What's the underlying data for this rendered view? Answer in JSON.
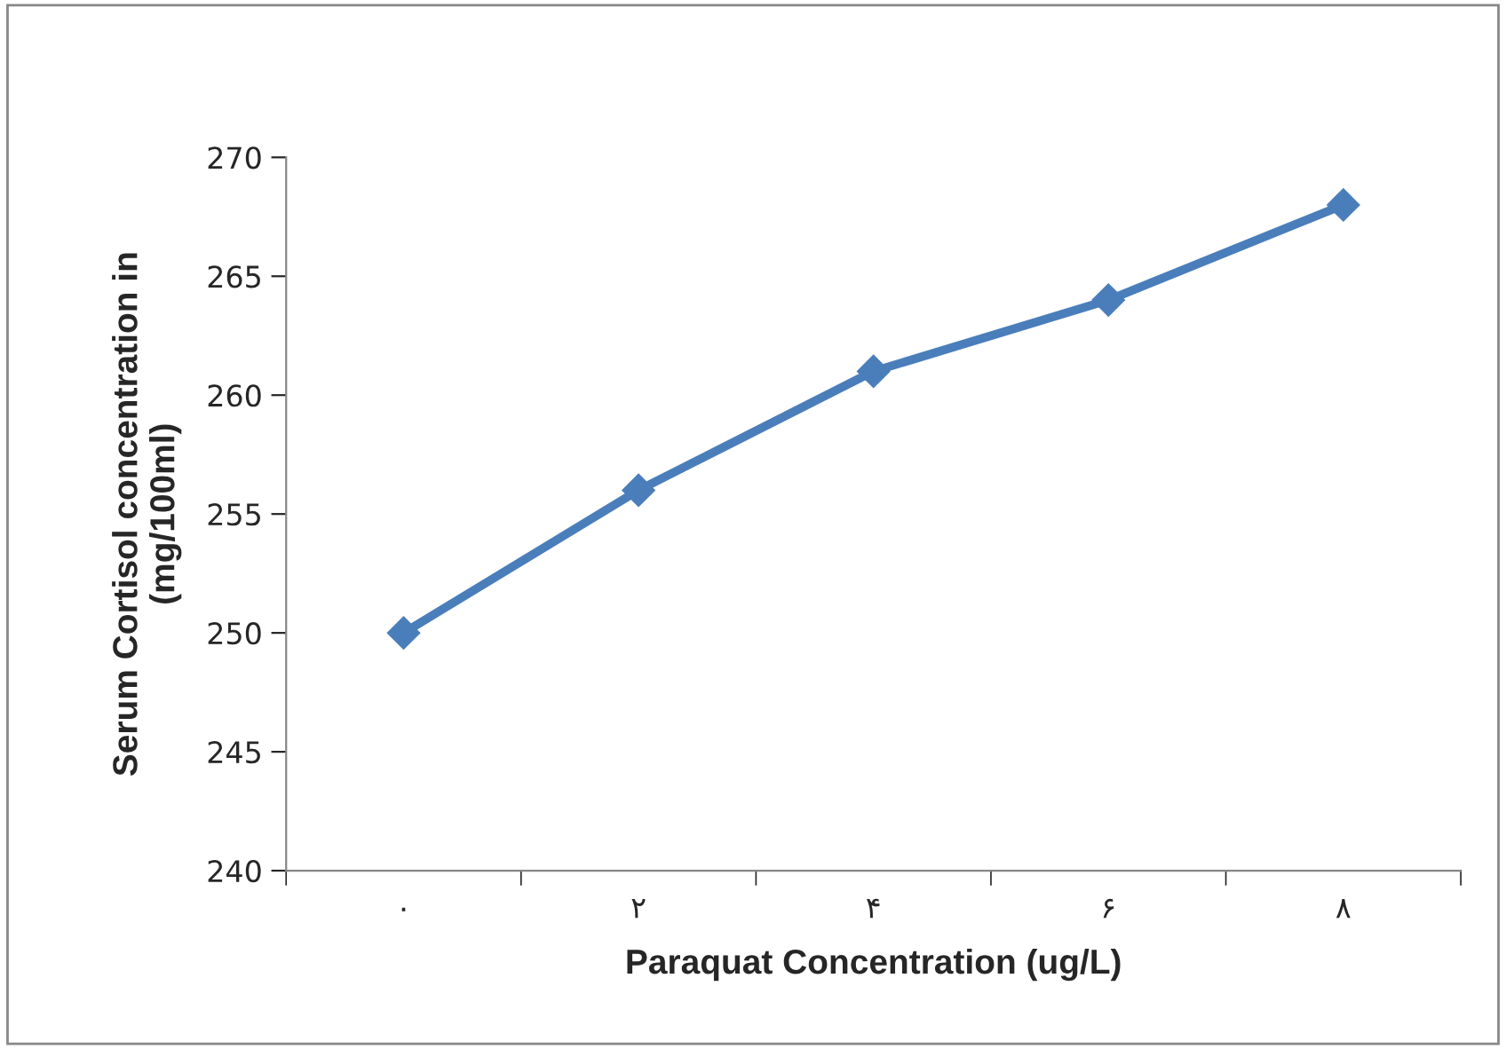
{
  "chart_data": {
    "type": "line",
    "xlabel": "Paraquat Concentration (ug/L)",
    "ylabel": "Serum Cortisol concentration in\n(mg/100ml)",
    "categories": [
      "۰",
      "۲",
      "۴",
      "۶",
      "۸"
    ],
    "series": [
      {
        "color": "#4a7ebb",
        "values": [
          250,
          256,
          261,
          264,
          268
        ]
      }
    ],
    "ylim": [
      240,
      270
    ],
    "yticks": [
      240,
      245,
      250,
      255,
      260,
      265,
      270
    ],
    "grid": false,
    "legend": false,
    "marker": "diamond",
    "line_style": "solid"
  }
}
